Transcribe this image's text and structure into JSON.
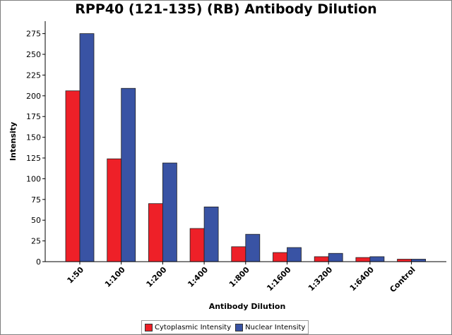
{
  "chart_data": {
    "type": "bar",
    "title": "RPP40 (121-135) (RB) Antibody Dilution",
    "xlabel": "Antibody Dilution",
    "ylabel": "Intensity",
    "ylim": [
      0,
      290
    ],
    "yticks": [
      0,
      25,
      50,
      75,
      100,
      125,
      150,
      175,
      200,
      225,
      250,
      275
    ],
    "grid": false,
    "legend_position": "bottom",
    "categories": [
      "1:50",
      "1:100",
      "1:200",
      "1:400",
      "1:800",
      "1:1600",
      "1:3200",
      "1:6400",
      "Control"
    ],
    "series": [
      {
        "name": "Cytoplasmic Intensity",
        "color": "#ee2028",
        "values": [
          206,
          124,
          70,
          40,
          18,
          11,
          6,
          5,
          3
        ]
      },
      {
        "name": "Nuclear Intensity",
        "color": "#3953a4",
        "values": [
          275,
          209,
          119,
          66,
          33,
          17,
          10,
          6,
          3
        ]
      }
    ]
  }
}
